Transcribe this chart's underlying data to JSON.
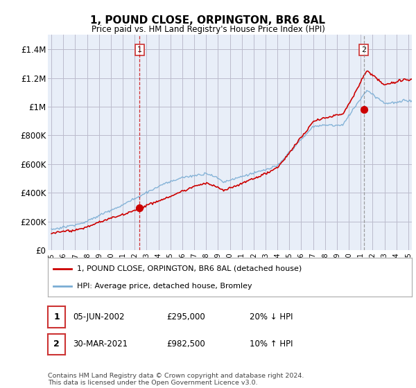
{
  "title": "1, POUND CLOSE, ORPINGTON, BR6 8AL",
  "subtitle": "Price paid vs. HM Land Registry's House Price Index (HPI)",
  "ylim": [
    0,
    1500000
  ],
  "yticks": [
    0,
    200000,
    400000,
    600000,
    800000,
    1000000,
    1200000,
    1400000
  ],
  "ytick_labels": [
    "£0",
    "£200K",
    "£400K",
    "£600K",
    "£800K",
    "£1M",
    "£1.2M",
    "£1.4M"
  ],
  "legend_red_label": "1, POUND CLOSE, ORPINGTON, BR6 8AL (detached house)",
  "legend_blue_label": "HPI: Average price, detached house, Bromley",
  "point1_label": "1",
  "point1_date": "05-JUN-2002",
  "point1_price": "£295,000",
  "point1_hpi": "20% ↓ HPI",
  "point2_label": "2",
  "point2_date": "30-MAR-2021",
  "point2_price": "£982,500",
  "point2_hpi": "10% ↑ HPI",
  "footer": "Contains HM Land Registry data © Crown copyright and database right 2024.\nThis data is licensed under the Open Government Licence v3.0.",
  "red_color": "#cc0000",
  "blue_color": "#7aadd4",
  "grid_color": "#bbbbcc",
  "chart_bg": "#e8eef8",
  "bg_color": "#ffffff",
  "point1_x_year": 2002.42,
  "point2_x_year": 2021.25,
  "point1_y": 295000,
  "point2_y": 982500,
  "xmin": 1995.0,
  "xmax": 2025.3
}
